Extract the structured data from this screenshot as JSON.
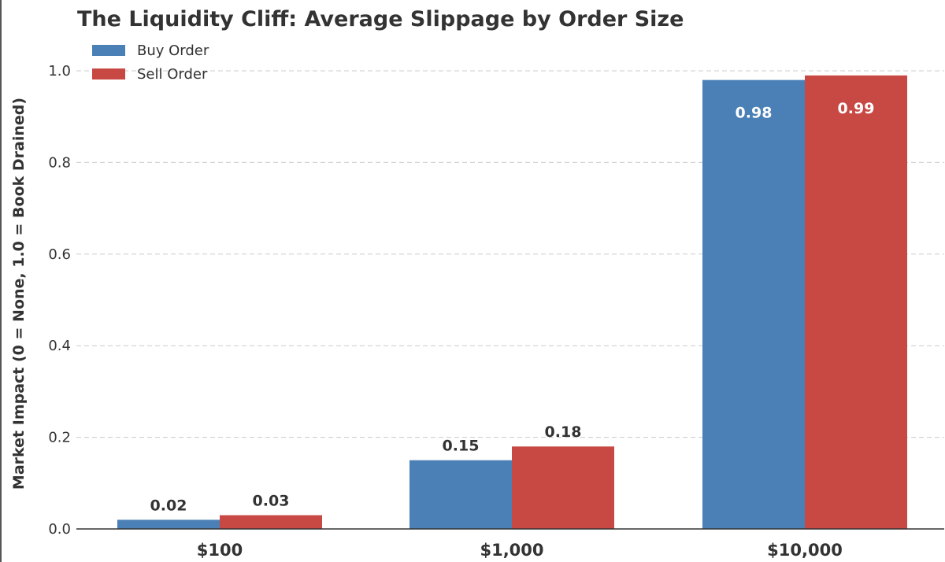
{
  "chart_data": {
    "type": "bar",
    "title": "The Liquidity Cliff: Average Slippage by Order Size",
    "xlabel": "",
    "ylabel": "Market Impact (0 = None, 1.0 = Book Drained)",
    "categories": [
      "$100",
      "$1,000",
      "$10,000"
    ],
    "series": [
      {
        "name": "Buy Order",
        "values": [
          0.02,
          0.15,
          0.98
        ],
        "color": "#4a80b5"
      },
      {
        "name": "Sell Order",
        "values": [
          0.03,
          0.18,
          0.99
        ],
        "color": "#c84843"
      }
    ],
    "data_labels": [
      [
        "0.02",
        "0.15",
        "0.98"
      ],
      [
        "0.03",
        "0.18",
        "0.99"
      ]
    ],
    "ylim": [
      0,
      1.05
    ],
    "yticks": [
      "0.0",
      "0.2",
      "0.4",
      "0.6",
      "0.8",
      "1.0"
    ],
    "grid": true,
    "legend_position": "top-left"
  }
}
